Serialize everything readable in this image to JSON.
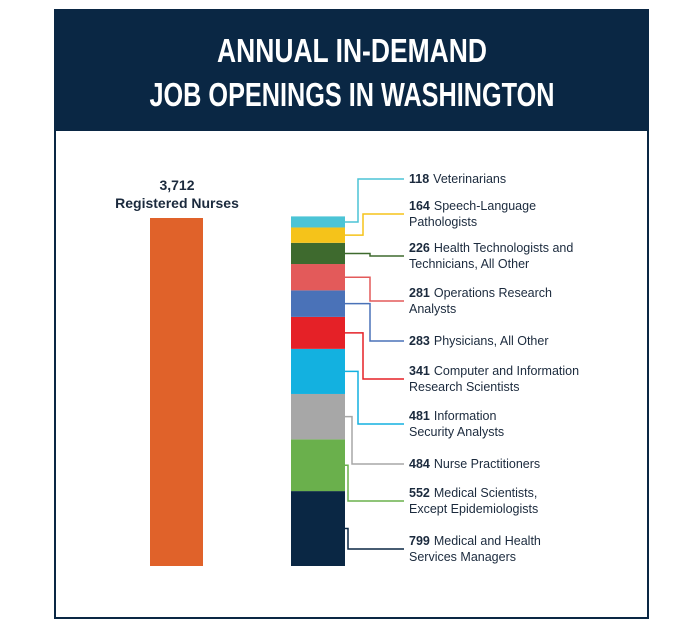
{
  "chart_data": {
    "type": "bar",
    "title": [
      "ANNUAL IN-DEMAND",
      "JOB OPENINGS IN WASHINGTON"
    ],
    "categories": [
      "Registered Nurses"
    ],
    "values": [
      3712
    ],
    "value_labels": [
      "3,712"
    ],
    "color": "#e0622a",
    "stack": [
      {
        "name": [
          "Veterinarians"
        ],
        "value": 118,
        "color": "#4bc4d6"
      },
      {
        "name": [
          "Speech-Language",
          "Pathologists"
        ],
        "value": 164,
        "color": "#f5c31a"
      },
      {
        "name": [
          "Health Technologists and",
          "Technicians, All Other"
        ],
        "value": 226,
        "color": "#3e6a2e"
      },
      {
        "name": [
          "Operations Research",
          "Analysts"
        ],
        "value": 281,
        "color": "#e35a5a"
      },
      {
        "name": [
          "Physicians, All Other"
        ],
        "value": 283,
        "color": "#4a72b8"
      },
      {
        "name": [
          "Computer and Information",
          "Research Scientists"
        ],
        "value": 341,
        "color": "#e52127"
      },
      {
        "name": [
          "Information",
          "Security Analysts"
        ],
        "value": 481,
        "color": "#13b1e0"
      },
      {
        "name": [
          "Nurse Practitioners"
        ],
        "value": 484,
        "color": "#a7a7a7"
      },
      {
        "name": [
          "Medical Scientists,",
          "Except Epidemiologists"
        ],
        "value": 552,
        "color": "#6ab04c"
      },
      {
        "name": [
          "Medical and Health",
          "Services Managers"
        ],
        "value": 799,
        "color": "#0a2744"
      }
    ]
  }
}
